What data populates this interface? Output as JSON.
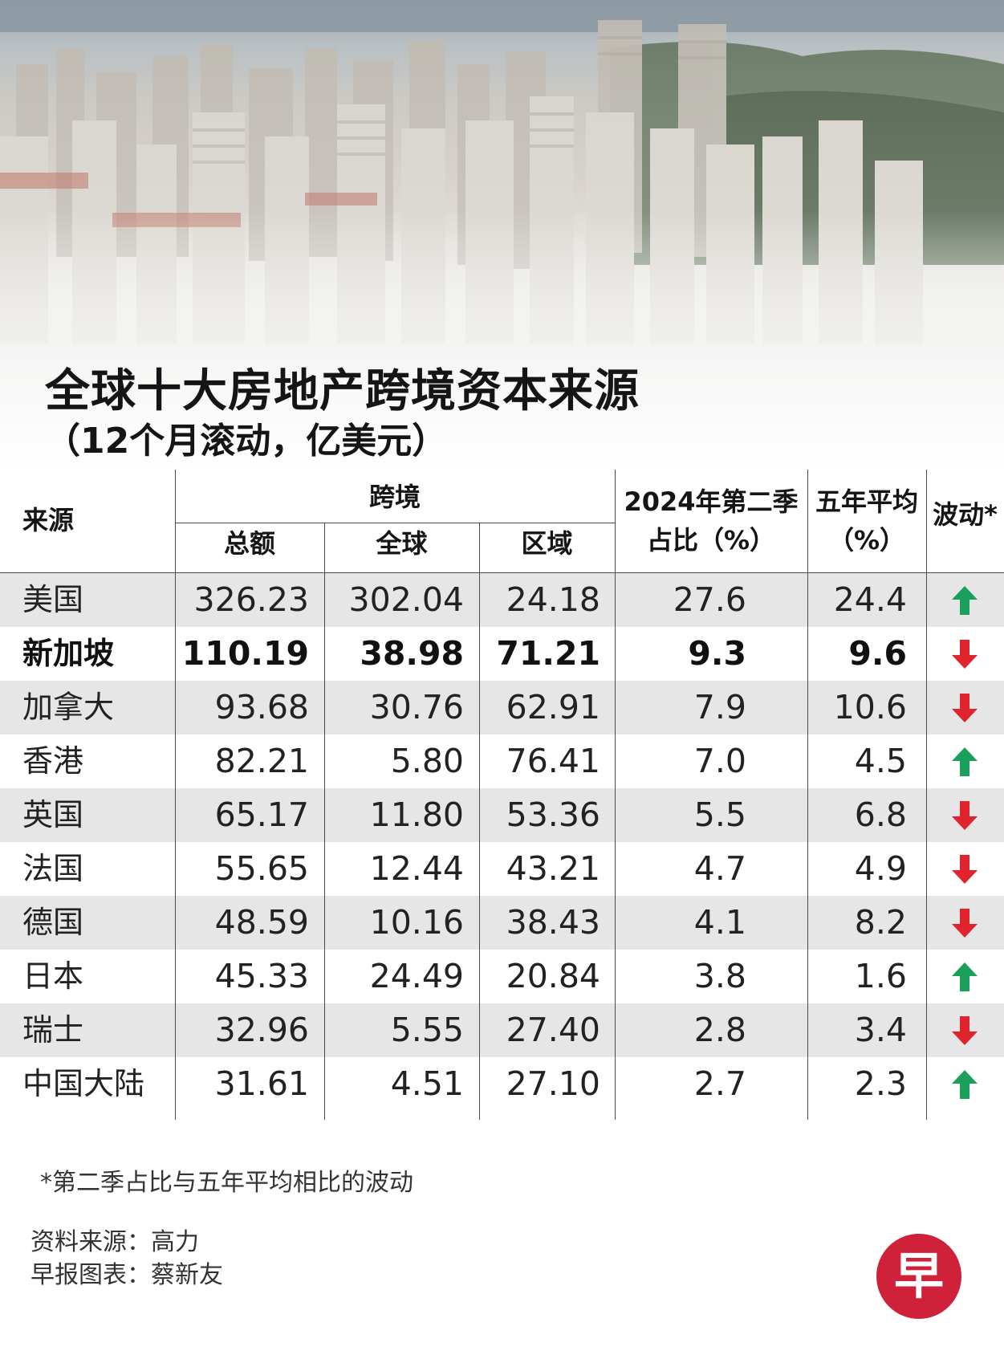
{
  "title": "全球十大房地产跨境资本来源",
  "subtitle": "（12个月滚动，亿美元）",
  "colors": {
    "up": "#1aa05a",
    "down": "#e0242e",
    "logo": "#d0213a",
    "row_shade": "#e6e6e6"
  },
  "headers": {
    "source": "来源",
    "cross_border": "跨境",
    "total": "总额",
    "global": "全球",
    "regional": "区域",
    "q2_share_line1": "2024年第二季",
    "q2_share_line2": "占比（%）",
    "five_year_line1": "五年平均",
    "five_year_line2": "（%）",
    "change": "波动*"
  },
  "chart_data": {
    "type": "table",
    "title": "全球十大房地产跨境资本来源",
    "subtitle": "（12个月滚动，亿美元）",
    "columns": [
      "来源",
      "总额",
      "全球",
      "区域",
      "2024年第二季占比（%）",
      "五年平均（%）",
      "波动*"
    ],
    "rows": [
      {
        "source": "美国",
        "total": "326.23",
        "global": "302.04",
        "regional": "24.18",
        "q2_share": "27.6",
        "five_year_avg": "24.4",
        "change": "up",
        "highlight": false
      },
      {
        "source": "新加坡",
        "total": "110.19",
        "global": "38.98",
        "regional": "71.21",
        "q2_share": "9.3",
        "five_year_avg": "9.6",
        "change": "down",
        "highlight": true
      },
      {
        "source": "加拿大",
        "total": "93.68",
        "global": "30.76",
        "regional": "62.91",
        "q2_share": "7.9",
        "five_year_avg": "10.6",
        "change": "down",
        "highlight": false
      },
      {
        "source": "香港",
        "total": "82.21",
        "global": "5.80",
        "regional": "76.41",
        "q2_share": "7.0",
        "five_year_avg": "4.5",
        "change": "up",
        "highlight": false
      },
      {
        "source": "英国",
        "total": "65.17",
        "global": "11.80",
        "regional": "53.36",
        "q2_share": "5.5",
        "five_year_avg": "6.8",
        "change": "down",
        "highlight": false
      },
      {
        "source": "法国",
        "total": "55.65",
        "global": "12.44",
        "regional": "43.21",
        "q2_share": "4.7",
        "five_year_avg": "4.9",
        "change": "down",
        "highlight": false
      },
      {
        "source": "德国",
        "total": "48.59",
        "global": "10.16",
        "regional": "38.43",
        "q2_share": "4.1",
        "five_year_avg": "8.2",
        "change": "down",
        "highlight": false
      },
      {
        "source": "日本",
        "total": "45.33",
        "global": "24.49",
        "regional": "20.84",
        "q2_share": "3.8",
        "five_year_avg": "1.6",
        "change": "up",
        "highlight": false
      },
      {
        "source": "瑞士",
        "total": "32.96",
        "global": "5.55",
        "regional": "27.40",
        "q2_share": "2.8",
        "five_year_avg": "3.4",
        "change": "down",
        "highlight": false
      },
      {
        "source": "中国大陆",
        "total": "31.61",
        "global": "4.51",
        "regional": "27.10",
        "q2_share": "2.7",
        "five_year_avg": "2.3",
        "change": "up",
        "highlight": false
      }
    ]
  },
  "footnote": "*第二季占比与五年平均相比的波动",
  "credits": {
    "source": "资料来源：高力",
    "chart_by": "早报图表：蔡新友"
  },
  "logo": {
    "icon": "zaobao-logo",
    "char": "早"
  }
}
